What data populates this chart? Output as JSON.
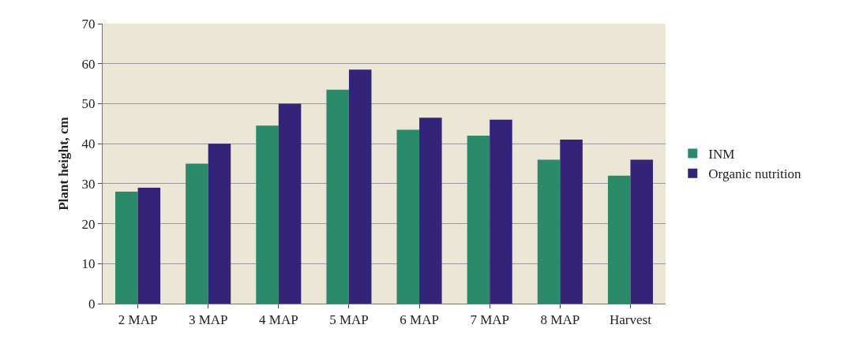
{
  "chart_data": {
    "type": "bar",
    "ylabel": "Plant height, cm",
    "categories": [
      "2 MAP",
      "3 MAP",
      "4 MAP",
      "5 MAP",
      "6 MAP",
      "7 MAP",
      "8 MAP",
      "Harvest"
    ],
    "series": [
      {
        "name": "INM",
        "color": "#2a8a6a",
        "values": [
          28,
          35,
          44.5,
          53.5,
          43.5,
          42,
          36,
          32
        ]
      },
      {
        "name": "Organic nutrition",
        "color": "#33247a",
        "values": [
          29,
          40,
          50,
          58.5,
          46.5,
          46,
          41,
          36
        ]
      }
    ],
    "ylim": [
      0,
      70
    ],
    "yticks": [
      0,
      10,
      20,
      30,
      40,
      50,
      60,
      70
    ],
    "grid": "y",
    "legend": "right"
  }
}
